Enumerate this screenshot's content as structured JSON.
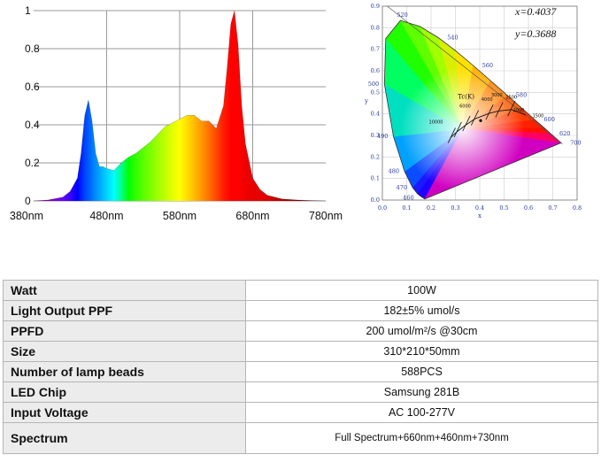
{
  "chart_data": [
    {
      "type": "area",
      "x_ticks": [
        "380nm",
        "480nm",
        "580nm",
        "680nm",
        "780nm"
      ],
      "y_ticks": [
        "0",
        "0.2",
        "0.4",
        "0.6",
        "0.8",
        "1"
      ],
      "xlim": [
        380,
        780
      ],
      "ylim": [
        0,
        1
      ],
      "grid": true,
      "x": [
        380,
        400,
        420,
        430,
        440,
        445,
        450,
        455,
        460,
        465,
        470,
        475,
        480,
        490,
        500,
        510,
        520,
        540,
        560,
        580,
        590,
        600,
        610,
        620,
        630,
        640,
        645,
        650,
        655,
        660,
        665,
        670,
        680,
        690,
        700,
        720,
        740,
        760,
        780
      ],
      "y": [
        0,
        0.005,
        0.02,
        0.05,
        0.12,
        0.25,
        0.45,
        0.53,
        0.42,
        0.25,
        0.18,
        0.18,
        0.17,
        0.16,
        0.2,
        0.23,
        0.25,
        0.31,
        0.39,
        0.43,
        0.45,
        0.45,
        0.42,
        0.42,
        0.38,
        0.5,
        0.7,
        0.93,
        1.0,
        0.82,
        0.5,
        0.3,
        0.12,
        0.06,
        0.03,
        0.01,
        0.005,
        0.002,
        0
      ]
    },
    {
      "type": "scatter",
      "annotations": [
        "x=0.4037",
        "y=0.3688",
        "Tc(K)"
      ],
      "x_ticks": [
        "0.0",
        "0.1",
        "0.2",
        "0.3",
        "0.4",
        "0.5",
        "0.6",
        "0.7",
        "0.8"
      ],
      "y_ticks": [
        "0.0",
        "0.1",
        "0.2",
        "0.3",
        "0.4",
        "0.5",
        "0.6",
        "0.7",
        "0.8",
        "0.9"
      ],
      "xlabel": "x",
      "ylabel": "y",
      "xlim": [
        0,
        0.8
      ],
      "ylim": [
        0,
        0.9
      ],
      "point": {
        "x": 0.4037,
        "y": 0.3688
      },
      "locus_labels": [
        {
          "nm": "460",
          "x": 0.144,
          "y": 0.03
        },
        {
          "nm": "470",
          "x": 0.124,
          "y": 0.058
        },
        {
          "nm": "480",
          "x": 0.091,
          "y": 0.133
        },
        {
          "nm": "490",
          "x": 0.045,
          "y": 0.295
        },
        {
          "nm": "500",
          "x": 0.008,
          "y": 0.538
        },
        {
          "nm": "520",
          "x": 0.074,
          "y": 0.834
        },
        {
          "nm": "540",
          "x": 0.23,
          "y": 0.754
        },
        {
          "nm": "560",
          "x": 0.373,
          "y": 0.624
        },
        {
          "nm": "580",
          "x": 0.512,
          "y": 0.487
        },
        {
          "nm": "600",
          "x": 0.627,
          "y": 0.373
        },
        {
          "nm": "620",
          "x": 0.691,
          "y": 0.308
        },
        {
          "nm": "700",
          "x": 0.735,
          "y": 0.265
        }
      ],
      "cct_labels": [
        "10000",
        "6000",
        "4000",
        "3000",
        "2500",
        "2000",
        "1500"
      ]
    }
  ],
  "table": [
    {
      "key": "Watt",
      "value": "100W"
    },
    {
      "key": "Light Output PPF",
      "value": "182±5% umol/s"
    },
    {
      "key": "PPFD",
      "value": "200 umol/m²/s @30cm"
    },
    {
      "key": "Size",
      "value": "310*210*50mm"
    },
    {
      "key": "Number of lamp beads",
      "value": "588PCS"
    },
    {
      "key": "LED Chip",
      "value": "Samsung 281B"
    },
    {
      "key": "Input Voltage",
      "value": "AC 100-277V"
    },
    {
      "key": "Spectrum",
      "value": "Full Spectrum+660nm+460nm+730nm"
    }
  ]
}
